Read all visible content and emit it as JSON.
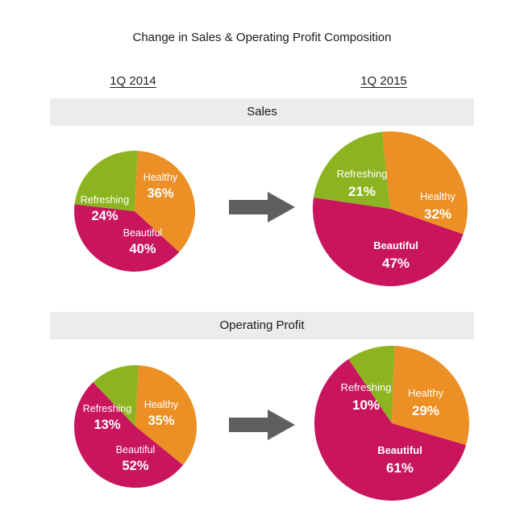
{
  "title": "Change in Sales & Operating Profit Composition",
  "periods": [
    "1Q 2014",
    "1Q 2015"
  ],
  "sections": [
    "Sales",
    "Operating Profit"
  ],
  "colors": {
    "Healthy": "#ec8f24",
    "Refreshing": "#8cb420",
    "Beautiful": "#c8155e",
    "arrow": "#5f5f5f",
    "band": "#ececec"
  },
  "chart_data": [
    {
      "type": "pie",
      "section": "Sales",
      "period": "1Q 2014",
      "categories": [
        "Healthy",
        "Beautiful",
        "Refreshing"
      ],
      "values": [
        36,
        40,
        24
      ],
      "labels": [
        "36%",
        "40%",
        "24%"
      ]
    },
    {
      "type": "pie",
      "section": "Sales",
      "period": "1Q 2015",
      "categories": [
        "Healthy",
        "Beautiful",
        "Refreshing"
      ],
      "values": [
        32,
        47,
        21
      ],
      "labels": [
        "32%",
        "47%",
        "21%"
      ]
    },
    {
      "type": "pie",
      "section": "Operating Profit",
      "period": "1Q 2014",
      "categories": [
        "Healthy",
        "Beautiful",
        "Refreshing"
      ],
      "values": [
        35,
        52,
        13
      ],
      "labels": [
        "35%",
        "52%",
        "13%"
      ]
    },
    {
      "type": "pie",
      "section": "Operating Profit",
      "period": "1Q 2015",
      "categories": [
        "Healthy",
        "Beautiful",
        "Refreshing"
      ],
      "values": [
        29,
        61,
        10
      ],
      "labels": [
        "29%",
        "61%",
        "10%"
      ]
    }
  ]
}
